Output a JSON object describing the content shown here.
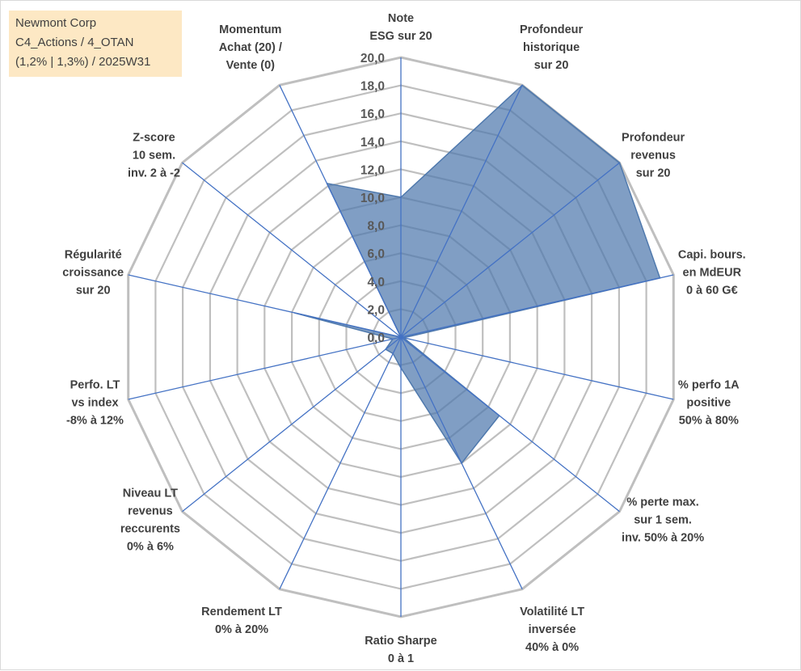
{
  "title": {
    "lines": [
      "Newmont Corp",
      "C4_Actions / 4_OTAN",
      "(1,2% | 1,3%) / 2025W31"
    ]
  },
  "chart_data": {
    "type": "radar",
    "grid": true,
    "legend": "none",
    "rlim": [
      0,
      20
    ],
    "ticks": [
      "0,0",
      "2,0",
      "4,0",
      "6,0",
      "8,0",
      "10,0",
      "12,0",
      "14,0",
      "16,0",
      "18,0",
      "20,0"
    ],
    "axes": [
      {
        "label": [
          "Note",
          "ESG sur 20"
        ]
      },
      {
        "label": [
          "Profondeur",
          "historique",
          "sur 20"
        ]
      },
      {
        "label": [
          "Profondeur",
          "revenus",
          "sur 20"
        ]
      },
      {
        "label": [
          "Capi. bours.",
          "en MdEUR",
          "0 à 60 G€"
        ]
      },
      {
        "label": [
          "% perfo 1A",
          "positive",
          "50% à 80%"
        ]
      },
      {
        "label": [
          "% perte max.",
          "sur 1 sem.",
          "inv. 50% à 20%"
        ]
      },
      {
        "label": [
          "Volatilité LT",
          "inversée",
          "40% à 0%"
        ]
      },
      {
        "label": [
          "Ratio Sharpe",
          "0 à 1"
        ]
      },
      {
        "label": [
          "Rendement LT",
          "0% à 20%"
        ]
      },
      {
        "label": [
          "Niveau LT",
          "revenus",
          "reccurents",
          "0% à 6%"
        ]
      },
      {
        "label": [
          "Perfo. LT",
          "vs index",
          "-8% à 12%"
        ]
      },
      {
        "label": [
          "Régularité",
          "croissance",
          "sur 20"
        ]
      },
      {
        "label": [
          "Z-score",
          "10 sem.",
          "inv. 2 à -2"
        ]
      },
      {
        "label": [
          "Momentum",
          "Achat (20) /",
          "Vente (0)"
        ]
      }
    ],
    "series": [
      {
        "values": [
          10,
          20,
          20,
          19,
          0.2,
          9,
          10,
          2.2,
          1.3,
          1.4,
          0.6,
          7.8,
          0,
          12.2
        ],
        "color": "#4f79ad",
        "fill_opacity": 0.72
      }
    ],
    "colors": {
      "grid": "#bfbfbf",
      "spoke": "#4472c4",
      "fill": "#4f79ad",
      "text": "#404040"
    }
  }
}
